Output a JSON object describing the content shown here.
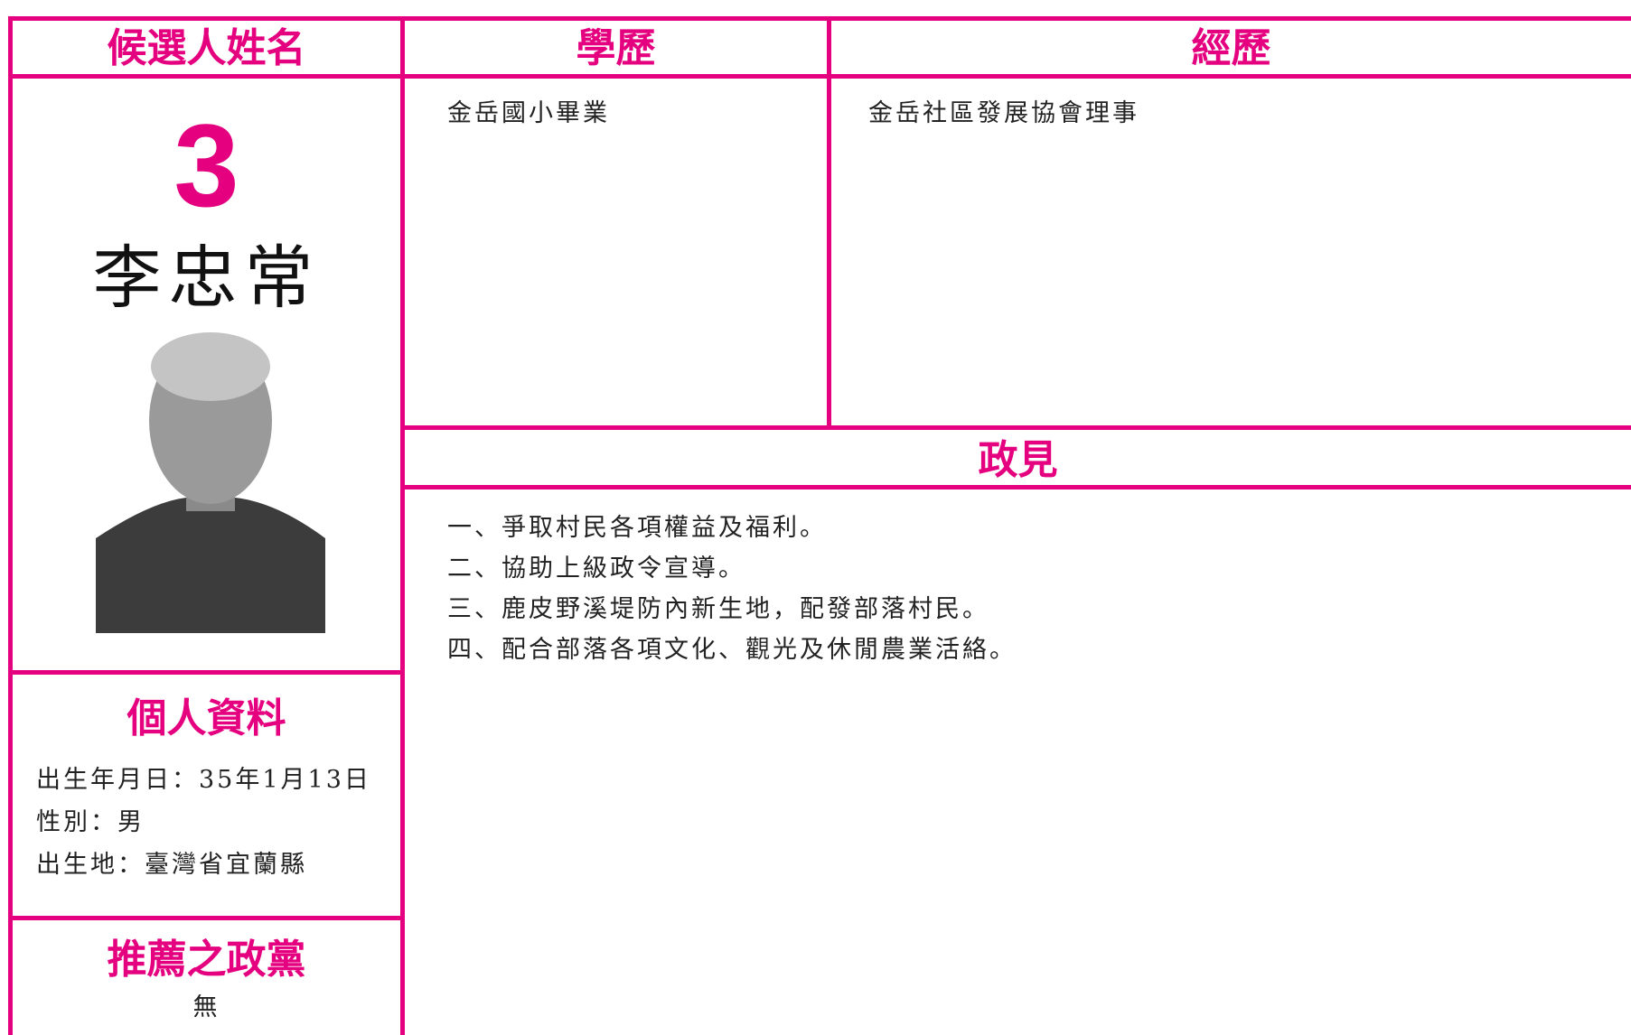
{
  "headers": {
    "name": "候選人姓名",
    "education": "學歷",
    "experience": "經歷",
    "policy": "政見",
    "personal": "個人資料",
    "party": "推薦之政黨"
  },
  "candidate": {
    "number": "3",
    "name": "李忠常"
  },
  "education": [
    "金岳國小畢業"
  ],
  "experience": [
    "金岳社區發展協會理事"
  ],
  "policies": [
    "一、爭取村民各項權益及福利。",
    "二、協助上級政令宣導。",
    "三、鹿皮野溪堤防內新生地，配發部落村民。",
    "四、配合部落各項文化、觀光及休閒農業活絡。"
  ],
  "personal_info": [
    "出生年月日：35年1月13日",
    "性別：男",
    "出生地：臺灣省宜蘭縣"
  ],
  "party": "無"
}
